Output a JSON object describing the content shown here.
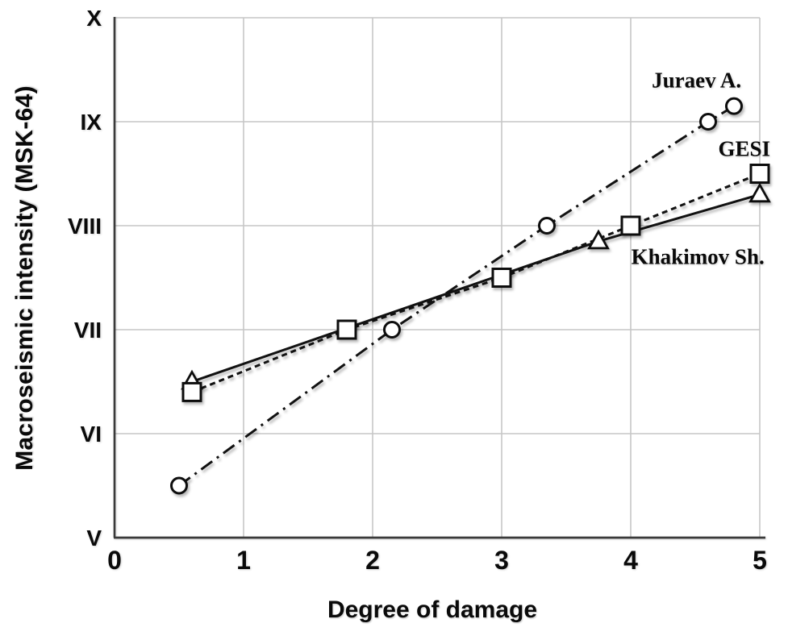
{
  "chart_data": {
    "type": "line",
    "title": "",
    "xlabel": "Degree of damage",
    "ylabel": "Macroseismic intensity (MSK-64)",
    "xlim": [
      0,
      5
    ],
    "ylim": [
      5,
      10
    ],
    "x_ticks": {
      "values": [
        0,
        1,
        2,
        3,
        4,
        5
      ],
      "labels": [
        "0",
        "1",
        "2",
        "3",
        "4",
        "5"
      ]
    },
    "y_ticks": {
      "values": [
        5,
        6,
        7,
        8,
        9,
        10
      ],
      "labels": [
        "V",
        "VI",
        "VII",
        "VIII",
        "IX",
        "X"
      ]
    },
    "grid": true,
    "legend_position": "inline-annotations",
    "series": [
      {
        "name": "Juraev A.",
        "marker": "circle",
        "line_style": "dashdot",
        "x": [
          0.5,
          2.15,
          3.35,
          4.6,
          4.8
        ],
        "y": [
          5.5,
          7.0,
          8.0,
          9.0,
          9.15
        ],
        "label": {
          "text": "Juraev A.",
          "x": 4.51,
          "y": 9.4
        }
      },
      {
        "name": "GESI",
        "marker": "square",
        "line_style": "dashed",
        "x": [
          0.6,
          1.8,
          3.0,
          4.0,
          5.0
        ],
        "y": [
          6.4,
          7.0,
          7.5,
          8.0,
          8.5
        ],
        "label": {
          "text": "GESI",
          "x": 4.88,
          "y": 8.74
        }
      },
      {
        "name": "Khakimov Sh.",
        "marker": "triangle",
        "line_style": "solid",
        "x": [
          0.6,
          3.75,
          5.0
        ],
        "y": [
          6.5,
          7.85,
          8.3
        ],
        "label": {
          "text": "Khakimov Sh.",
          "x": 4.52,
          "y": 7.7
        }
      }
    ],
    "colors": {
      "line": "#111111",
      "marker_fill": "#ffffff",
      "marker_stroke": "#0d0d0d",
      "grid": "#c6c6c6",
      "spine": "#3a3a3a",
      "text": "#0a0a0a"
    }
  }
}
